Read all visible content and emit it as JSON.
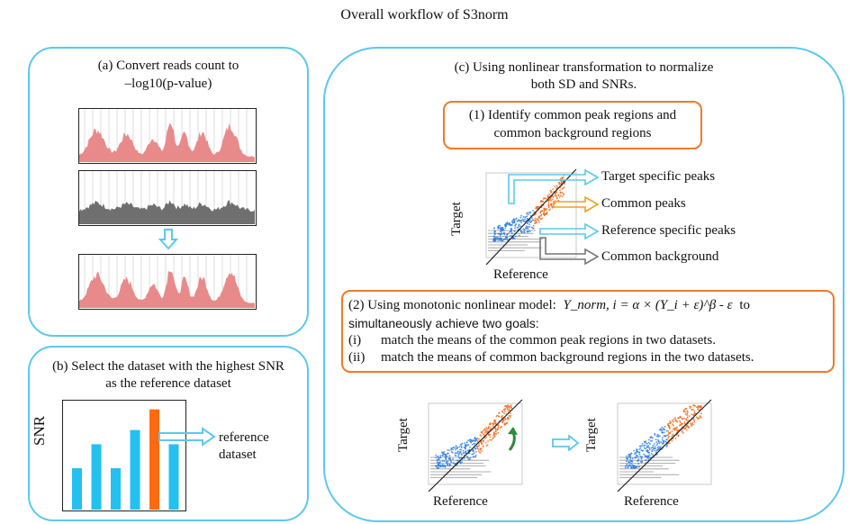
{
  "title": "Overall workflow of S3norm",
  "panel_a": {
    "line1": "(a)  Convert reads count to",
    "line2": "–log10(p-value)"
  },
  "panel_b": {
    "line1": "(b) Select the dataset with the highest SNR",
    "line2": "as the reference dataset",
    "ylabel": "SNR",
    "ref_line1": "reference",
    "ref_line2": "dataset",
    "bar_values": [
      0.38,
      0.6,
      0.38,
      0.73,
      0.92,
      0.6
    ],
    "bar_colors": [
      "#22c1ef",
      "#22c1ef",
      "#22c1ef",
      "#22c1ef",
      "#ff6a10",
      "#22c1ef"
    ]
  },
  "panel_c": {
    "line1": "(c) Using nonlinear transformation to normalize",
    "line2": "both SD and SNRs.",
    "step1_line1": "(1) Identify common peak regions and",
    "step1_line2": "common background regions",
    "categories": [
      "Target specific peaks",
      "Common peaks",
      "Reference specific peaks",
      "Common background"
    ],
    "axis_x": "Reference",
    "axis_y": "Target",
    "step2_prefix": "(2) Using monotonic nonlinear model:",
    "step2_equation": "Y_norm, i = α × (Y_i + ε)^β - ε",
    "step2_to": "to",
    "step2_line2": "simultaneously achieve two goals:",
    "goal1_num": "(i)",
    "goal1_text": "match the means of the common peak regions in two datasets.",
    "goal2_num": "(ii)",
    "goal2_text": "match the means of common background regions in the two datasets.",
    "bottom_left_x": "Reference",
    "bottom_left_y": "Target",
    "bottom_right_x": "Reference",
    "bottom_right_y": "Target"
  },
  "colors": {
    "panel_border": "#5bc8ee",
    "orange": "#f07a2a",
    "blue_points": "#2f7fe0",
    "orange_points": "#f26a1b",
    "track_red": "#e88a8a",
    "track_gray": "#6f6f6f"
  }
}
